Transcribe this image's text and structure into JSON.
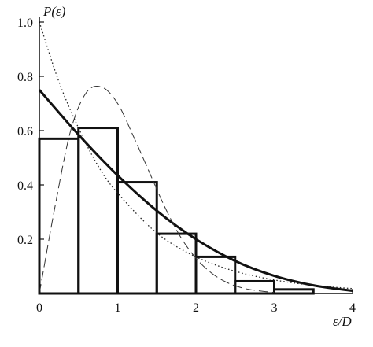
{
  "chart_data": {
    "type": "bar",
    "title": "",
    "xlabel": "ε/D",
    "ylabel": "P(ε)",
    "xlim": [
      0,
      4
    ],
    "ylim": [
      0,
      1.0
    ],
    "grid": false,
    "x_ticks": [
      "0",
      "1",
      "2",
      "3",
      "4"
    ],
    "y_ticks": [
      "0.2",
      "0.4",
      "0.6",
      "0.8",
      "1.0"
    ],
    "x_tick_values": [
      0,
      1,
      2,
      3,
      4
    ],
    "y_tick_values": [
      0.2,
      0.4,
      0.6,
      0.8,
      1.0
    ],
    "histogram": {
      "bin_edges": [
        0,
        0.5,
        1.0,
        1.5,
        2.0,
        2.5,
        3.0,
        3.5,
        4.0
      ],
      "values": [
        0.57,
        0.61,
        0.41,
        0.22,
        0.135,
        0.045,
        0.015,
        0.0
      ]
    },
    "series": [
      {
        "style": "solid-thick",
        "x": [
          0,
          0.5,
          1.0,
          1.5,
          2.0,
          2.5,
          3.0,
          3.5,
          4.0
        ],
        "y": [
          0.75,
          0.585,
          0.435,
          0.305,
          0.2,
          0.12,
          0.065,
          0.03,
          0.01
        ]
      },
      {
        "style": "dotted",
        "x": [
          0,
          0.25,
          0.5,
          0.75,
          1.0,
          1.5,
          2.0,
          2.5,
          3.0,
          3.5,
          4.0
        ],
        "y": [
          1.0,
          0.78,
          0.61,
          0.47,
          0.37,
          0.223,
          0.135,
          0.082,
          0.05,
          0.03,
          0.018
        ]
      },
      {
        "style": "dashed",
        "x": [
          0,
          0.2,
          0.4,
          0.6,
          0.8,
          1.0,
          1.2,
          1.4,
          1.6,
          1.8,
          2.0,
          2.2,
          2.4,
          2.6,
          2.8,
          3.0
        ],
        "y": [
          0.0,
          0.32,
          0.6,
          0.74,
          0.76,
          0.7,
          0.58,
          0.45,
          0.32,
          0.21,
          0.13,
          0.075,
          0.04,
          0.02,
          0.01,
          0.004
        ]
      }
    ]
  }
}
